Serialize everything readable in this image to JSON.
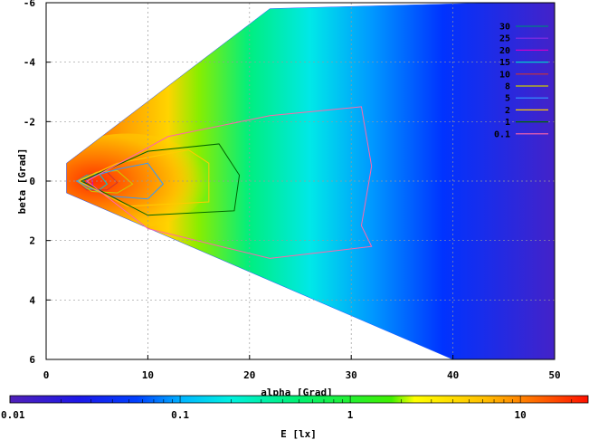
{
  "chart_data": {
    "type": "heatmap",
    "xlabel": "alpha [Grad]",
    "ylabel": "beta [Grad]",
    "xlim": [
      0,
      50
    ],
    "ylim": [
      -6,
      6
    ],
    "y_axis_inverted": true,
    "xticks": [
      "0",
      "10",
      "20",
      "30",
      "40",
      "50"
    ],
    "yticks": [
      "-6",
      "-4",
      "-2",
      "0",
      "2",
      "4",
      "6"
    ],
    "grid": true,
    "legend_position": "top-right",
    "contour_levels": [
      {
        "label": "30",
        "color": "#008080"
      },
      {
        "label": "25",
        "color": "#8a2be2"
      },
      {
        "label": "20",
        "color": "#cc00cc"
      },
      {
        "label": "15",
        "color": "#00cccc"
      },
      {
        "label": "10",
        "color": "#cc3333"
      },
      {
        "label": "8",
        "color": "#cccc00"
      },
      {
        "label": "5",
        "color": "#3399ff"
      },
      {
        "label": "2",
        "color": "#ffcc00"
      },
      {
        "label": "1",
        "color": "#006600"
      },
      {
        "label": "0.1",
        "color": "#ff66aa"
      }
    ],
    "colorbar": {
      "label": "E [lx]",
      "scale": "log",
      "range": [
        0.01,
        25
      ],
      "ticks": [
        "0.01",
        "0.1",
        "1",
        "10"
      ]
    },
    "illuminated_wedge": {
      "apex_alpha": 2,
      "top_edge": [
        [
          2,
          -0.6
        ],
        [
          22,
          -5.8
        ],
        [
          44,
          -6
        ]
      ],
      "bottom_edge": [
        [
          2,
          0.4
        ],
        [
          40,
          6
        ],
        [
          50,
          6
        ]
      ]
    }
  }
}
